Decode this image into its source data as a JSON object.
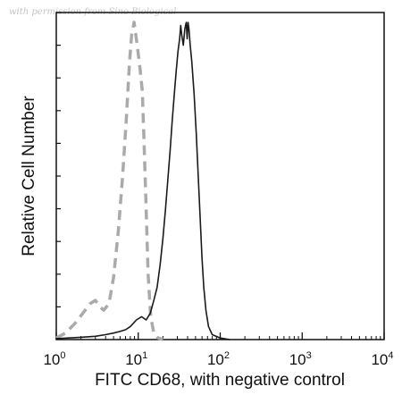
{
  "watermark": "with permission from Sino Biological",
  "chart_data": {
    "type": "line",
    "title": "",
    "xlabel": "FITC CD68, with negative control",
    "ylabel": "Relative Cell Number",
    "xscale": "log",
    "xlim": [
      1,
      10000
    ],
    "ylim": [
      0,
      100
    ],
    "x_ticks": [
      {
        "base": "10",
        "exp": "0"
      },
      {
        "base": "10",
        "exp": "1"
      },
      {
        "base": "10",
        "exp": "2"
      },
      {
        "base": "10",
        "exp": "3"
      },
      {
        "base": "10",
        "exp": "4"
      }
    ],
    "grid": false,
    "series": [
      {
        "style": "dashed",
        "color": "#aaaaaa",
        "points": [
          [
            1.0,
            0.5
          ],
          [
            1.3,
            2
          ],
          [
            1.7,
            5
          ],
          [
            2.1,
            8
          ],
          [
            2.6,
            11
          ],
          [
            3.0,
            12
          ],
          [
            3.4,
            10
          ],
          [
            3.8,
            9
          ],
          [
            4.4,
            11
          ],
          [
            5.0,
            19
          ],
          [
            5.7,
            33
          ],
          [
            6.4,
            49
          ],
          [
            7.1,
            66
          ],
          [
            7.8,
            84
          ],
          [
            8.3,
            93
          ],
          [
            8.9,
            97
          ],
          [
            9.6,
            91
          ],
          [
            10.5,
            83
          ],
          [
            11.2,
            76
          ],
          [
            11.8,
            60
          ],
          [
            12.5,
            40
          ],
          [
            13.2,
            20
          ],
          [
            14.2,
            7
          ],
          [
            15.5,
            2
          ],
          [
            17.5,
            0.5
          ],
          [
            20,
            0
          ]
        ]
      },
      {
        "style": "solid",
        "color": "#1a1a1a",
        "points": [
          [
            1.0,
            0.3
          ],
          [
            2.0,
            0.7
          ],
          [
            3.0,
            1
          ],
          [
            4.0,
            1.5
          ],
          [
            5.0,
            2
          ],
          [
            6.0,
            2.5
          ],
          [
            7.0,
            3
          ],
          [
            8.0,
            4
          ],
          [
            9.5,
            6
          ],
          [
            11.0,
            7
          ],
          [
            12.5,
            6
          ],
          [
            14.0,
            8
          ],
          [
            15.5,
            12
          ],
          [
            17.0,
            16
          ],
          [
            18.5,
            23
          ],
          [
            20.0,
            31
          ],
          [
            21.5,
            40
          ],
          [
            23.0,
            49
          ],
          [
            24.5,
            58
          ],
          [
            26.0,
            67
          ],
          [
            27.5,
            75
          ],
          [
            29.0,
            82
          ],
          [
            30.5,
            88
          ],
          [
            32.0,
            92
          ],
          [
            33.0,
            96
          ],
          [
            34.0,
            93
          ],
          [
            35.5,
            90
          ],
          [
            37.0,
            95
          ],
          [
            38.5,
            97
          ],
          [
            39.5,
            92
          ],
          [
            40.5,
            97
          ],
          [
            41.5,
            95
          ],
          [
            43.0,
            90
          ],
          [
            45.0,
            85
          ],
          [
            48.0,
            75
          ],
          [
            51.0,
            63
          ],
          [
            54.0,
            50
          ],
          [
            57.0,
            37
          ],
          [
            60.0,
            25
          ],
          [
            63.0,
            16
          ],
          [
            67.0,
            9
          ],
          [
            72.0,
            4
          ],
          [
            80.0,
            1.5
          ],
          [
            100.0,
            0.5
          ],
          [
            130.0,
            0
          ]
        ]
      }
    ]
  }
}
